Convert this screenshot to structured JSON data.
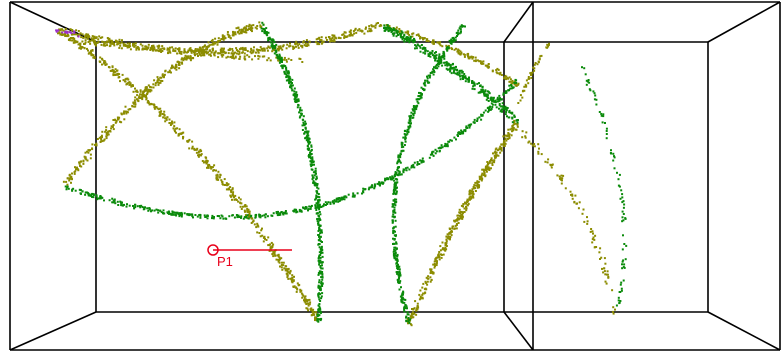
{
  "scene": {
    "type": "3d-point-cloud-viewer",
    "colors": {
      "olive": "#8c8c00",
      "green": "#0a8a0a",
      "purple": "#9b30c8",
      "marker": "#e8001a",
      "frame": "#000000"
    }
  },
  "marker": {
    "label": "P1",
    "icon": "circle-marker-icon"
  }
}
